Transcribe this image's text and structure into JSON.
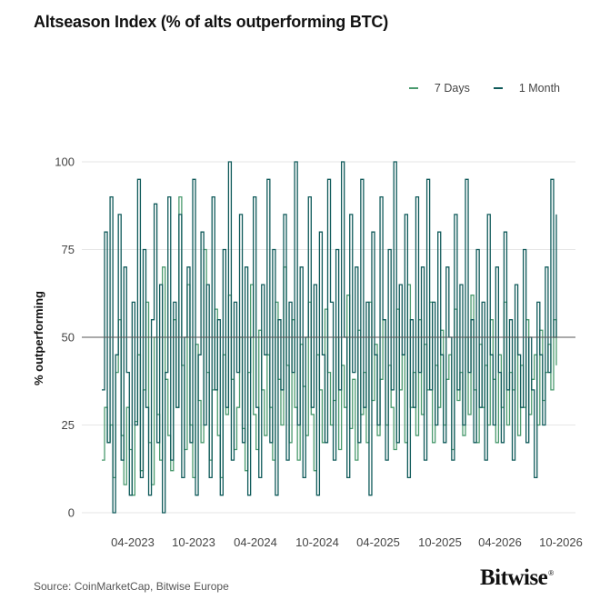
{
  "chart_data": {
    "type": "line",
    "title": "Altseason Index (% of alts outperforming BTC)",
    "ylabel": "% outperforming",
    "xlabel": "",
    "ylim": [
      0,
      100
    ],
    "yticks": [
      0,
      25,
      50,
      75,
      100
    ],
    "reference_line": 50,
    "x_range": [
      "2022-11",
      "2026-10"
    ],
    "xticks": [
      "04-2023",
      "10-2023",
      "04-2024",
      "10-2024",
      "04-2025",
      "10-2025",
      "04-2026",
      "10-2026"
    ],
    "legend_placement": "top-right",
    "grid": "horizontal",
    "series": [
      {
        "name": "7 Days",
        "color": "#4a9a6e",
        "values": [
          15,
          30,
          20,
          25,
          10,
          40,
          55,
          22,
          8,
          30,
          18,
          5,
          26,
          45,
          12,
          35,
          60,
          20,
          8,
          50,
          28,
          15,
          70,
          38,
          22,
          12,
          55,
          30,
          90,
          42,
          18,
          65,
          25,
          10,
          48,
          32,
          20,
          75,
          40,
          15,
          35,
          58,
          22,
          10,
          45,
          28,
          62,
          38,
          18,
          30,
          50,
          24,
          12,
          40,
          65,
          28,
          18,
          52,
          35,
          22,
          45,
          30,
          15,
          60,
          38,
          25,
          70,
          42,
          20,
          55,
          30,
          15,
          48,
          36,
          22,
          60,
          28,
          12,
          45,
          35,
          20,
          58,
          40,
          25,
          32,
          50,
          18,
          42,
          30,
          62,
          24,
          38,
          15,
          52,
          28,
          40,
          20,
          60,
          32,
          48,
          22,
          38,
          55,
          25,
          42,
          30,
          18,
          58,
          35,
          45,
          20,
          65,
          30,
          40,
          22,
          55,
          28,
          48,
          35,
          60,
          20,
          42,
          30,
          52,
          25,
          38,
          45,
          18,
          58,
          32,
          40,
          22,
          50,
          28,
          62,
          35,
          20,
          48,
          30,
          42,
          25,
          55,
          38,
          20,
          45,
          30,
          60,
          25,
          40,
          35,
          50,
          22,
          42,
          30,
          55,
          28,
          38,
          45,
          25,
          52,
          32,
          40,
          48,
          35,
          55,
          42
        ]
      },
      {
        "name": "1 Month",
        "color": "#0f5a5a",
        "values": [
          35,
          80,
          20,
          90,
          0,
          45,
          85,
          15,
          70,
          40,
          5,
          60,
          25,
          95,
          10,
          75,
          30,
          5,
          55,
          88,
          20,
          65,
          0,
          40,
          90,
          15,
          60,
          30,
          85,
          10,
          50,
          70,
          20,
          95,
          5,
          45,
          80,
          25,
          65,
          10,
          90,
          35,
          55,
          5,
          75,
          30,
          100,
          15,
          60,
          40,
          85,
          20,
          70,
          5,
          50,
          90,
          30,
          10,
          65,
          45,
          95,
          20,
          75,
          5,
          55,
          35,
          85,
          15,
          60,
          40,
          100,
          25,
          70,
          10,
          50,
          90,
          30,
          65,
          5,
          80,
          45,
          20,
          95,
          60,
          15,
          75,
          35,
          100,
          50,
          10,
          85,
          40,
          70,
          20,
          95,
          30,
          60,
          5,
          80,
          45,
          25,
          90,
          55,
          15,
          75,
          35,
          100,
          20,
          65,
          45,
          85,
          10,
          55,
          30,
          90,
          40,
          70,
          15,
          95,
          35,
          60,
          25,
          80,
          45,
          20,
          70,
          50,
          15,
          85,
          35,
          65,
          25,
          95,
          40,
          55,
          20,
          75,
          30,
          60,
          15,
          85,
          45,
          25,
          70,
          40,
          20,
          80,
          35,
          55,
          15,
          65,
          45,
          30,
          75,
          20,
          50,
          35,
          10,
          60,
          45,
          25,
          70,
          40,
          95,
          50,
          85
        ]
      }
    ]
  },
  "footer": {
    "source": "Source: CoinMarketCap, Bitwise Europe",
    "logo": "Bitwise"
  }
}
